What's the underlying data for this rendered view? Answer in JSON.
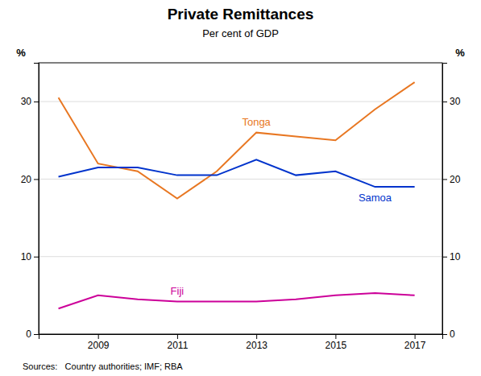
{
  "chart_data": {
    "type": "line",
    "title": "Private Remittances",
    "subtitle": "Per cent of GDP",
    "source": "Sources:   Country authorities; IMF; RBA",
    "ylabel": "%",
    "y2label": "%",
    "x": [
      2008,
      2009,
      2010,
      2011,
      2012,
      2013,
      2014,
      2015,
      2016,
      2017
    ],
    "series": [
      {
        "name": "Tonga",
        "color": "#E87722",
        "values": [
          30.5,
          22.0,
          21.0,
          17.5,
          21.0,
          26.0,
          25.5,
          25.0,
          29.0,
          32.5
        ]
      },
      {
        "name": "Samoa",
        "color": "#0033CC",
        "values": [
          20.3,
          21.5,
          21.5,
          20.5,
          20.5,
          22.5,
          20.5,
          21.0,
          19.0,
          19.0
        ]
      },
      {
        "name": "Fiji",
        "color": "#CC0099",
        "values": [
          3.3,
          5.0,
          4.5,
          4.2,
          4.2,
          4.2,
          4.5,
          5.0,
          5.3,
          5.0
        ]
      }
    ],
    "xlim": [
      2007.5,
      2017.7
    ],
    "xticks": [
      2009,
      2011,
      2013,
      2015,
      2017
    ],
    "ylim": [
      0,
      35
    ],
    "yticks": [
      0,
      10,
      20,
      30
    ],
    "y2lim": [
      0,
      35
    ],
    "y2ticks": [
      0,
      10,
      20,
      30
    ],
    "grid": true
  }
}
